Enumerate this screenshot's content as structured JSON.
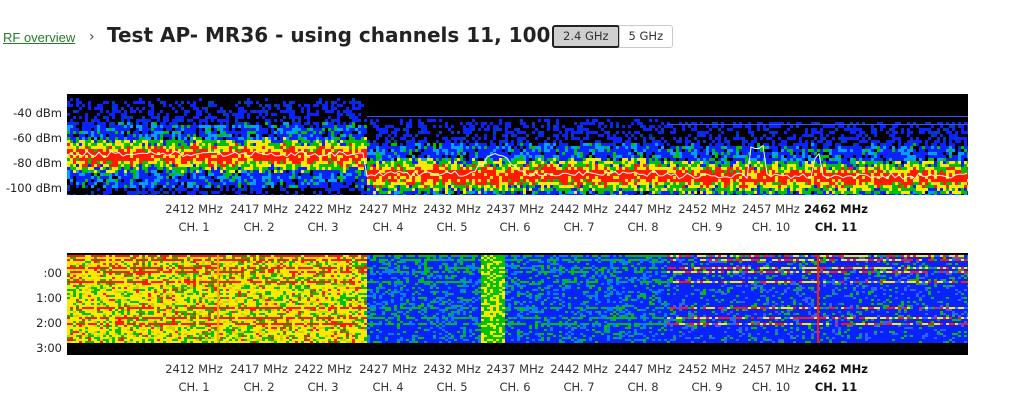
{
  "breadcrumb": {
    "link": "RF overview",
    "separator": "›"
  },
  "page_title": "Test AP- MR36 - using channels 11, 100",
  "band_toggle": {
    "options": [
      {
        "label": "2.4 GHz",
        "selected": true
      },
      {
        "label": "5 GHz",
        "selected": false
      }
    ]
  },
  "spectrum": {
    "y_ticks": [
      "-40 dBm",
      "-60 dBm",
      "-80 dBm",
      "-100 dBm"
    ],
    "colors": {
      "noise": "#0a22ff",
      "low": "#00c000",
      "mid": "#ffe800",
      "high": "#ff1a00",
      "trace": "#ffffff"
    }
  },
  "waterfall": {
    "y_ticks": [
      ":00",
      "1:00",
      "2:00",
      "3:00"
    ]
  },
  "channels": [
    {
      "mhz": "2412 MHz",
      "ch": "CH. 1",
      "active": false
    },
    {
      "mhz": "2417 MHz",
      "ch": "CH. 2",
      "active": false
    },
    {
      "mhz": "2422 MHz",
      "ch": "CH. 3",
      "active": false
    },
    {
      "mhz": "2427 MHz",
      "ch": "CH. 4",
      "active": false
    },
    {
      "mhz": "2432 MHz",
      "ch": "CH. 5",
      "active": false
    },
    {
      "mhz": "2437 MHz",
      "ch": "CH. 6",
      "active": false
    },
    {
      "mhz": "2442 MHz",
      "ch": "CH. 7",
      "active": false
    },
    {
      "mhz": "2447 MHz",
      "ch": "CH. 8",
      "active": false
    },
    {
      "mhz": "2452 MHz",
      "ch": "CH. 9",
      "active": false
    },
    {
      "mhz": "2457 MHz",
      "ch": "CH. 10",
      "active": false
    },
    {
      "mhz": "2462 MHz",
      "ch": "CH. 11",
      "active": true
    }
  ]
}
